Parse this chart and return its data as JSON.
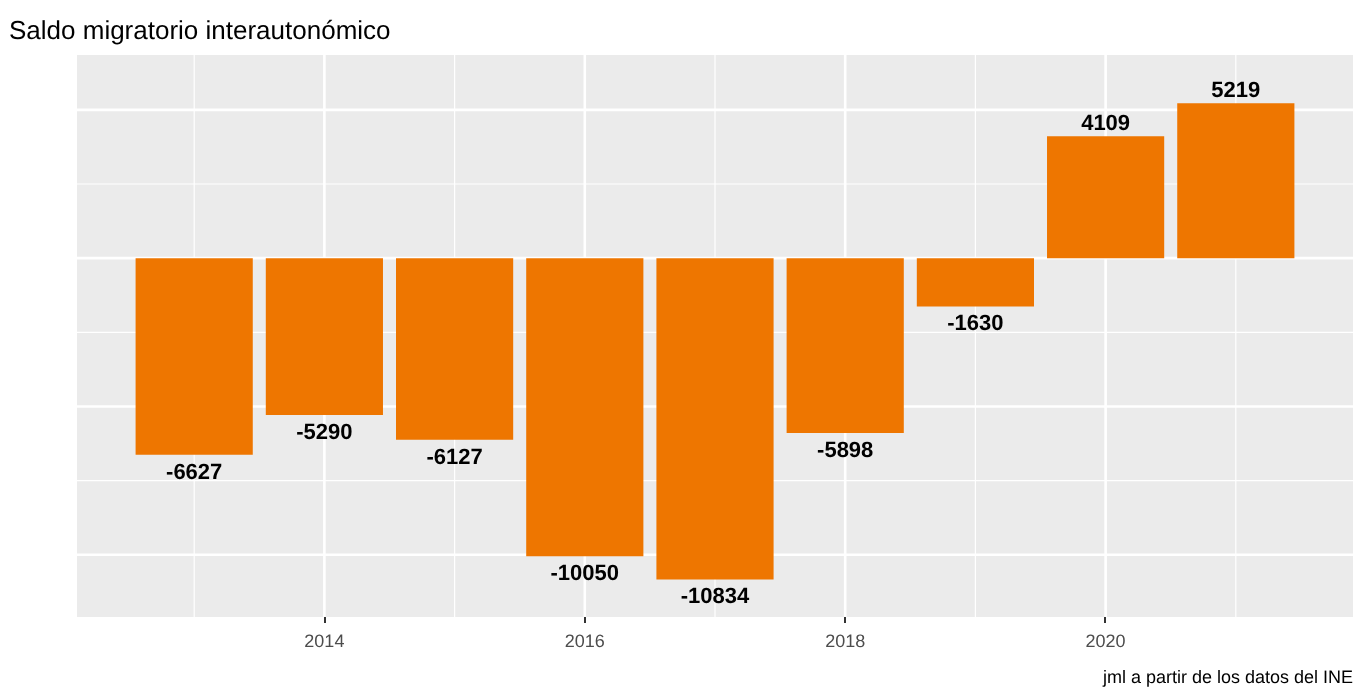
{
  "chart_data": {
    "type": "bar",
    "title": "Saldo migratorio interautonómico",
    "x": [
      2013,
      2014,
      2015,
      2016,
      2017,
      2018,
      2019,
      2020,
      2021
    ],
    "values": [
      -6627,
      -5290,
      -6127,
      -10050,
      -10834,
      -5898,
      -1630,
      4109,
      5219
    ],
    "color": "#ee7600",
    "data_labels": true,
    "xlim": [
      2012.1,
      2021.9
    ],
    "xticks": [
      {
        "value": 2013,
        "label": null
      },
      2014,
      {
        "value": 2015,
        "label": null
      },
      2016,
      {
        "value": 2017,
        "label": null
      },
      2018,
      {
        "value": 2019,
        "label": null
      },
      2020,
      {
        "value": 2021,
        "label": null
      }
    ],
    "ylim": [
      -12100,
      6850
    ],
    "yticks": [
      {
        "value": -10000,
        "label": null
      },
      {
        "value": -7500,
        "label": null
      },
      {
        "value": -5000,
        "label": null
      },
      {
        "value": -2500,
        "label": null
      },
      {
        "value": 0,
        "label": null
      },
      {
        "value": 2500,
        "label": null
      },
      {
        "value": 5000,
        "label": null
      }
    ],
    "tick_labels": "x",
    "grid": true,
    "annotations": [
      "jml a partir de los datos del INE"
    ]
  }
}
